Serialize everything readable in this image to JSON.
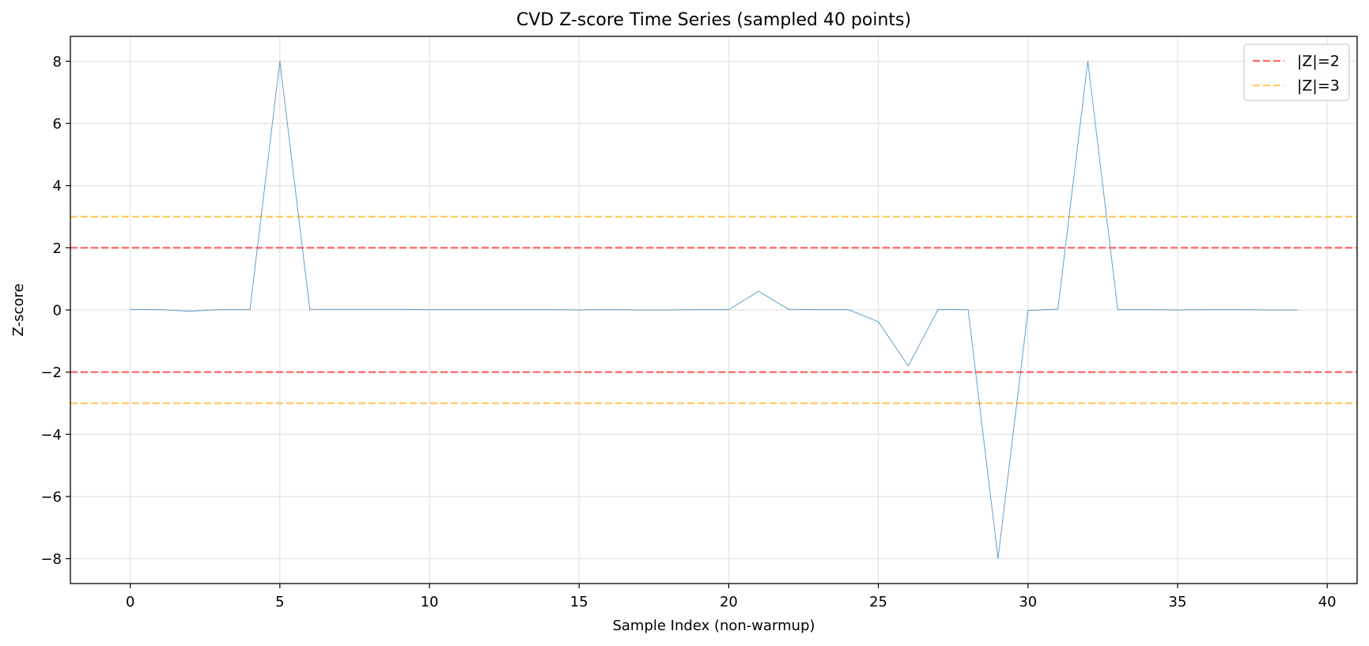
{
  "chart_data": {
    "type": "line",
    "title": "CVD Z-score Time Series (sampled 40 points)",
    "xlabel": "Sample Index (non-warmup)",
    "ylabel": "Z-score",
    "xlim": [
      -2,
      41
    ],
    "ylim": [
      -8.8,
      8.8
    ],
    "xticks": [
      0,
      5,
      10,
      15,
      20,
      25,
      30,
      35,
      40
    ],
    "yticks": [
      -8,
      -6,
      -4,
      -2,
      0,
      2,
      4,
      6,
      8
    ],
    "grid": true,
    "legend_position": "top-right",
    "series": [
      {
        "color": "#1f77b4",
        "x": [
          0,
          1,
          2,
          3,
          4,
          5,
          6,
          7,
          8,
          9,
          10,
          11,
          12,
          13,
          14,
          15,
          16,
          17,
          18,
          19,
          20,
          21,
          22,
          23,
          24,
          25,
          26,
          27,
          28,
          29,
          30,
          31,
          32,
          33,
          34,
          35,
          36,
          37,
          38,
          39
        ],
        "values": [
          0.02,
          0.01,
          -0.04,
          0.01,
          0.01,
          8.0,
          0.02,
          0.02,
          0.02,
          0.02,
          0.01,
          0.01,
          0.01,
          0.01,
          0.01,
          0.0,
          0.01,
          0.0,
          0.0,
          0.01,
          0.01,
          0.6,
          0.02,
          0.01,
          0.01,
          -0.38,
          -1.8,
          0.02,
          0.01,
          -8.0,
          -0.02,
          0.03,
          8.0,
          0.01,
          0.01,
          0.0,
          0.01,
          0.01,
          0.0,
          0.0
        ]
      }
    ],
    "reference_lines": [
      {
        "name": "|Z|=2",
        "color": "#ff4d4d",
        "values": [
          2,
          -2
        ]
      },
      {
        "name": "|Z|=3",
        "color": "#ffc34d",
        "values": [
          3,
          -3
        ]
      }
    ]
  }
}
